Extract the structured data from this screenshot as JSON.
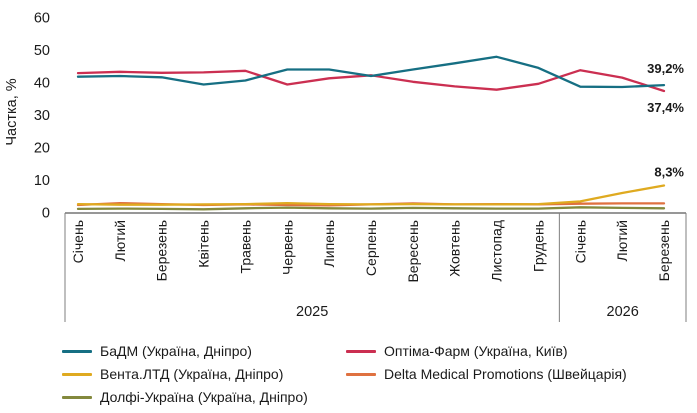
{
  "chart_data": {
    "type": "line",
    "title": "",
    "xlabel": "",
    "ylabel": "Частка, %",
    "ylim": [
      0,
      60
    ],
    "yticks": [
      0,
      10,
      20,
      30,
      40,
      50,
      60
    ],
    "grid": false,
    "legend_position": "bottom",
    "x_categories": [
      "Січень",
      "Лютий",
      "Березень",
      "Квітень",
      "Травень",
      "Червень",
      "Липень",
      "Серпень",
      "Вересень",
      "Жовтень",
      "Листопад",
      "Грудень",
      "Січень",
      "Лютий",
      "Березень"
    ],
    "year_groups": [
      {
        "label": "2025",
        "months": 12
      },
      {
        "label": "2026",
        "months": 3
      }
    ],
    "series": [
      {
        "name": "БаДМ (Україна, Дніпро)",
        "color": "#166f83",
        "values": [
          41.8,
          42.0,
          41.6,
          39.4,
          40.6,
          44.0,
          44.0,
          42.0,
          44.0,
          45.9,
          47.9,
          44.5,
          38.7,
          38.6,
          39.2
        ]
      },
      {
        "name": "Оптіма-Фарм (Україна, Київ)",
        "color": "#cb2f51",
        "values": [
          42.9,
          43.3,
          43.0,
          43.1,
          43.6,
          39.4,
          41.3,
          42.2,
          40.2,
          38.8,
          37.8,
          39.6,
          43.8,
          41.5,
          37.4
        ]
      },
      {
        "name": "Вента.ЛТД (Україна, Дніпро)",
        "color": "#dfaa20",
        "values": [
          2.6,
          2.4,
          2.4,
          2.5,
          2.6,
          2.9,
          2.6,
          2.5,
          2.6,
          2.5,
          2.5,
          2.6,
          3.4,
          6.0,
          8.3
        ]
      },
      {
        "name": "Delta Medical Promotions (Швейцарія)",
        "color": "#df7140",
        "values": [
          2.3,
          2.9,
          2.6,
          2.3,
          2.5,
          2.3,
          2.2,
          2.5,
          2.8,
          2.5,
          2.6,
          2.5,
          2.7,
          2.8,
          2.8
        ]
      },
      {
        "name": "Долфі-Україна (Україна, Дніпро)",
        "color": "#83893d",
        "values": [
          1.1,
          1.2,
          1.1,
          1.0,
          1.3,
          1.5,
          1.3,
          1.2,
          1.4,
          1.3,
          1.2,
          1.2,
          1.6,
          1.4,
          1.3
        ]
      }
    ],
    "end_labels": [
      {
        "series": "БаДМ (Україна, Дніпро)",
        "text": "39,2%"
      },
      {
        "series": "Оптіма-Фарм (Україна, Київ)",
        "text": "37,4%"
      },
      {
        "series": "Вента.ЛТД (Україна, Дніпро)",
        "text": "8,3%"
      }
    ],
    "legend_order": [
      0,
      1,
      2,
      3,
      4
    ]
  }
}
